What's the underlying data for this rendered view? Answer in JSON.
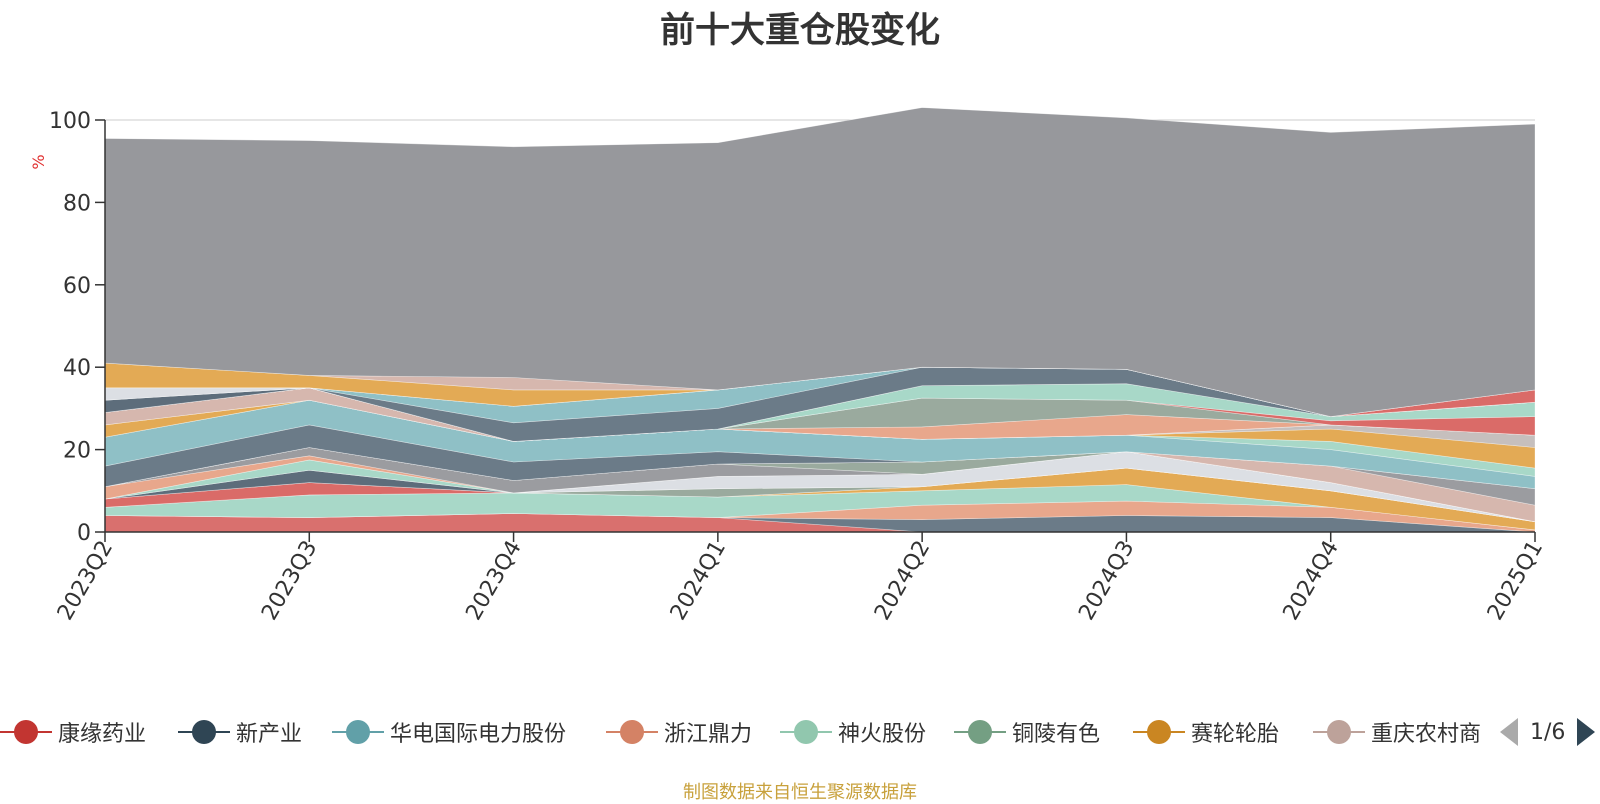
{
  "title": "前十大重仓股变化",
  "source_note": "制图数据来自恒生聚源数据库",
  "legend_page": "1/6",
  "legend": [
    {
      "name": "康缘药业",
      "color": "#c23531"
    },
    {
      "name": "新产业",
      "color": "#2f4554"
    },
    {
      "name": "华电国际电力股份",
      "color": "#61a0a8"
    },
    {
      "name": "浙江鼎力",
      "color": "#d48265"
    },
    {
      "name": "神火股份",
      "color": "#91c7ae"
    },
    {
      "name": "铜陵有色",
      "color": "#749f83"
    },
    {
      "name": "赛轮轮胎",
      "color": "#ca8622"
    },
    {
      "name": "重庆农村商",
      "color": "#bda29a"
    }
  ],
  "chart_data": {
    "type": "area",
    "stacked": true,
    "title": "前十大重仓股变化",
    "ylabel": "%",
    "ylim": [
      0,
      100
    ],
    "yticks": [
      0,
      20,
      40,
      60,
      80,
      100
    ],
    "x": [
      "2023Q2",
      "2023Q3",
      "2023Q4",
      "2024Q1",
      "2024Q2",
      "2024Q3",
      "2024Q4",
      "2025Q1"
    ],
    "grid": true,
    "series": [
      {
        "color": "#d9706e",
        "values": [
          4,
          3.5,
          4.5,
          3.5,
          0,
          0,
          0,
          0
        ]
      },
      {
        "color": "#6b7b88",
        "values": [
          0,
          0,
          0,
          0,
          3,
          4,
          3.5,
          0
        ]
      },
      {
        "color": "#e8a78c",
        "values": [
          0,
          0,
          0,
          0,
          3.5,
          3.5,
          2.5,
          0.5
        ]
      },
      {
        "color": "#a8d8c8",
        "values": [
          2,
          5.5,
          5,
          5,
          3.5,
          4,
          0,
          0
        ]
      },
      {
        "color": "#e3aa55",
        "values": [
          0,
          0,
          0,
          0,
          1,
          4,
          4,
          2
        ]
      },
      {
        "color": "#da6b68",
        "values": [
          2,
          3,
          0,
          0,
          0,
          0,
          0,
          0
        ]
      },
      {
        "color": "#9aaa9e",
        "values": [
          0,
          0,
          0,
          2,
          0,
          0,
          0,
          0
        ]
      },
      {
        "color": "#5d6d7b",
        "values": [
          0,
          3,
          0,
          0,
          0,
          0,
          0,
          0
        ]
      },
      {
        "color": "#dcdfe4",
        "values": [
          0,
          0,
          0,
          3,
          3,
          4,
          2,
          0
        ]
      },
      {
        "color": "#a8d8c8",
        "values": [
          0,
          2.5,
          0,
          0,
          0,
          0,
          0,
          0
        ]
      },
      {
        "color": "#e8a78c",
        "values": [
          3,
          1,
          0,
          0,
          0,
          0,
          0,
          0
        ]
      },
      {
        "color": "#9b9ca0",
        "values": [
          0,
          2,
          3,
          3,
          0,
          0,
          0,
          0
        ]
      },
      {
        "color": "#9aaa9e",
        "values": [
          0,
          0,
          0,
          0,
          3,
          0,
          0,
          0
        ]
      },
      {
        "color": "#d6b7ae",
        "values": [
          0,
          0,
          0,
          0,
          0,
          0,
          4,
          4
        ]
      },
      {
        "color": "#9b9ca0",
        "values": [
          0,
          0,
          0,
          0,
          0,
          0,
          0,
          4
        ]
      },
      {
        "color": "#6b7b88",
        "values": [
          5,
          5.5,
          4.5,
          3,
          0,
          0,
          0,
          0
        ]
      },
      {
        "color": "#8fc0c6",
        "values": [
          7,
          6,
          5,
          5.5,
          5.5,
          4,
          4,
          3
        ]
      },
      {
        "color": "#a8d8c8",
        "values": [
          0,
          0,
          0,
          0,
          0,
          0,
          2,
          2
        ]
      },
      {
        "color": "#e3aa55",
        "values": [
          3,
          0,
          0,
          0,
          0,
          0,
          3,
          5
        ]
      },
      {
        "color": "#c6bfbd",
        "values": [
          0,
          0,
          0,
          0,
          0,
          0,
          1,
          3
        ]
      },
      {
        "color": "#d6b7ae",
        "values": [
          3,
          3,
          0,
          0,
          0,
          0,
          0,
          0
        ]
      },
      {
        "color": "#e8a78c",
        "values": [
          0,
          0,
          0,
          0,
          3,
          5,
          0,
          0
        ]
      },
      {
        "color": "#9aaa9e",
        "values": [
          0,
          0,
          0,
          0,
          7,
          3.5,
          0,
          0
        ]
      },
      {
        "color": "#da6b68",
        "values": [
          0,
          0,
          0,
          0,
          0,
          0,
          1,
          4.5
        ]
      },
      {
        "color": "#a8d8c8",
        "values": [
          0,
          0,
          0,
          0,
          3,
          4,
          1,
          3.5
        ]
      },
      {
        "color": "#5d6d7b",
        "values": [
          3,
          0,
          0,
          0,
          0,
          0,
          0,
          0
        ]
      },
      {
        "color": "#6b7b88",
        "values": [
          0,
          0,
          4.5,
          5,
          4.5,
          3.5,
          0,
          0
        ]
      },
      {
        "color": "#8fc0c6",
        "values": [
          0,
          0,
          4,
          4.5,
          0,
          0,
          0,
          0
        ]
      },
      {
        "color": "#dcdfe4",
        "values": [
          3,
          0,
          0,
          0,
          0,
          0,
          0,
          0
        ]
      },
      {
        "color": "#da6b68",
        "values": [
          0,
          0,
          0,
          0,
          0,
          0,
          0,
          3
        ]
      },
      {
        "color": "#e3aa55",
        "values": [
          6,
          3,
          4,
          0,
          0,
          0,
          0,
          0
        ]
      },
      {
        "color": "#d6b7ae",
        "values": [
          0,
          0,
          3,
          0,
          0,
          0,
          0,
          0
        ]
      },
      {
        "color": "#97989c",
        "values": [
          54.5,
          57,
          56,
          60,
          63,
          61,
          69,
          64.5
        ]
      }
    ]
  }
}
